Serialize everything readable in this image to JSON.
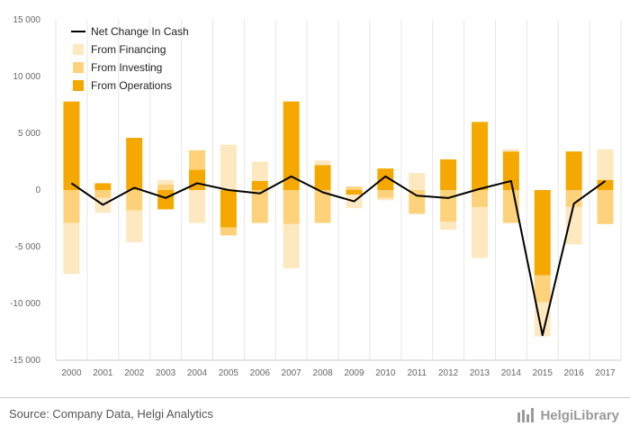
{
  "chart_data": {
    "type": "bar",
    "categories": [
      "2000",
      "2001",
      "2002",
      "2003",
      "2004",
      "2005",
      "2006",
      "2007",
      "2008",
      "2009",
      "2010",
      "2011",
      "2012",
      "2013",
      "2014",
      "2015",
      "2016",
      "2017"
    ],
    "series": [
      {
        "name": "From Operations",
        "color": "#f5a800",
        "values": [
          7800,
          600,
          4600,
          -1700,
          1800,
          -3300,
          800,
          7800,
          2200,
          -400,
          1900,
          0,
          2700,
          6000,
          3400,
          -7500,
          3400,
          900
        ]
      },
      {
        "name": "From Investing",
        "color": "#fdd27a",
        "values": [
          -2900,
          -700,
          -1800,
          500,
          1700,
          -700,
          -2900,
          -3000,
          -2900,
          300,
          -700,
          -2100,
          -2800,
          -1500,
          -2900,
          -2400,
          -1500,
          -3000
        ]
      },
      {
        "name": "From Financing",
        "color": "#fde8c0",
        "values": [
          -4500,
          -1300,
          -2800,
          400,
          -2900,
          4000,
          1700,
          -3900,
          400,
          -1200,
          -200,
          1500,
          -700,
          -4500,
          200,
          -3000,
          -3300,
          2700
        ]
      },
      {
        "name": "Net Change In Cash",
        "color": "#000000",
        "type": "line",
        "values": [
          600,
          -1300,
          200,
          -700,
          600,
          0,
          -300,
          1200,
          -200,
          -1000,
          1200,
          -500,
          -700,
          100,
          800,
          -12800,
          -1200,
          800
        ]
      }
    ],
    "yticks": [
      -15000,
      -10000,
      -5000,
      0,
      5000,
      10000,
      15000
    ],
    "ytick_labels": [
      "-15 000",
      "-10 000",
      "-5 000",
      "0",
      "5 000",
      "10 000",
      "15 000"
    ],
    "ylim": [
      -15000,
      15000
    ],
    "legend": "top-left",
    "grid": "vertical"
  },
  "footer": {
    "source": "Source: Company Data, Helgi Analytics",
    "brand": "HelgiLibrary"
  }
}
